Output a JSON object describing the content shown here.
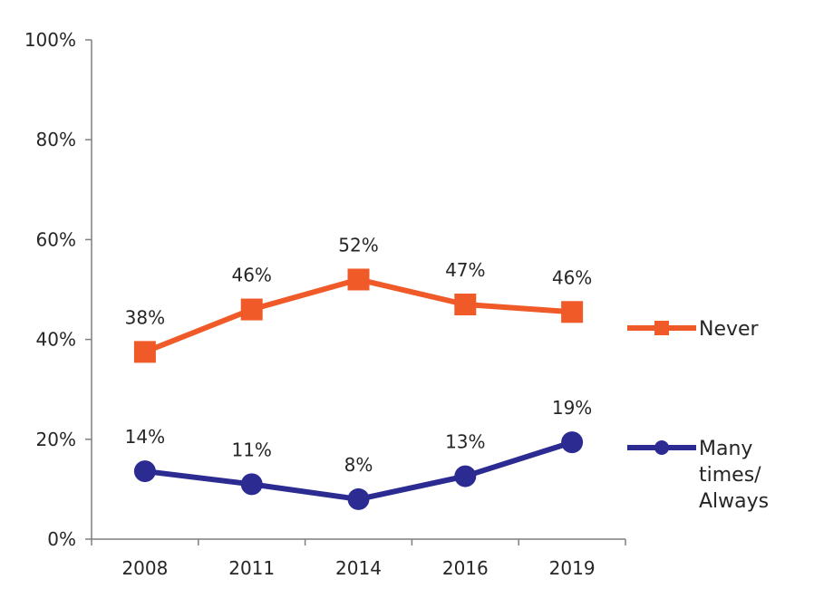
{
  "chart_data": {
    "type": "line",
    "title": "",
    "xlabel": "",
    "ylabel": "",
    "categories": [
      "2008",
      "2011",
      "2014",
      "2016",
      "2019"
    ],
    "ylim": [
      0,
      100
    ],
    "yticks": [
      "0%",
      "20%",
      "40%",
      "60%",
      "80%",
      "100%"
    ],
    "grid": false,
    "legend_position": "right",
    "series": [
      {
        "name": "Never",
        "values": [
          37.5,
          46,
          52,
          47,
          45.5
        ],
        "labels": [
          "38%",
          "46%",
          "52%",
          "47%",
          "46%"
        ],
        "marker": "square",
        "color": "#f05a28"
      },
      {
        "name": "Many times/ Always",
        "name_lines": [
          "Many",
          "times/",
          "Always"
        ],
        "values": [
          13.6,
          11,
          8,
          12.6,
          19.4
        ],
        "labels": [
          "14%",
          "11%",
          "8%",
          "13%",
          "19%"
        ],
        "marker": "circle",
        "color": "#2b2b91"
      }
    ]
  }
}
